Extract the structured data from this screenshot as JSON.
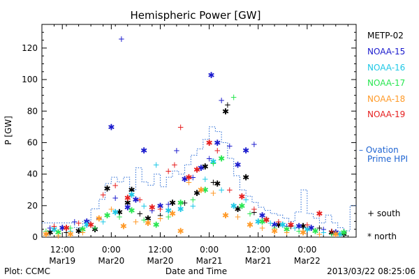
{
  "chart_data": {
    "type": "scatter",
    "title": "Hemispheric Power [GW]",
    "xlabel": "Date and Time",
    "ylabel": "P [GW]",
    "ylim": [
      0,
      135
    ],
    "xlim": [
      "2013-03-19T07:00",
      "2013-03-22T12:00"
    ],
    "yticks": [
      0,
      20,
      40,
      60,
      80,
      100,
      120
    ],
    "xticks": [
      {
        "top": "12:00",
        "bottom": "Mar19"
      },
      {
        "top": "0:00",
        "bottom": "Mar20"
      },
      {
        "top": "12:00",
        "bottom": "Mar20"
      },
      {
        "top": "0:00",
        "bottom": "Mar21"
      },
      {
        "top": "12:00",
        "bottom": "Mar21"
      },
      {
        "top": "0:00",
        "bottom": "Mar22"
      }
    ],
    "legend_position": "right",
    "legend_colors": {
      "METP-02": "#000000",
      "NOAA-15": "#1a1acd",
      "NOAA-16": "#1ec8e6",
      "NOAA-17": "#28e650",
      "NOAA-18": "#ff9a28",
      "NOAA-19": "#e61e1e",
      "Ovation Prime HPI": "#1e64d2"
    },
    "marker_key": {
      "plus": "south",
      "asterisk": "north"
    },
    "series": [
      {
        "name": "METP-02",
        "color": "#000000",
        "points": [
          [
            "2013-03-19T09:00",
            3,
            "n"
          ],
          [
            "2013-03-19T13:00",
            3,
            "s"
          ],
          [
            "2013-03-19T16:00",
            4,
            "n"
          ],
          [
            "2013-03-19T20:00",
            5,
            "n"
          ],
          [
            "2013-03-19T23:00",
            31,
            "n"
          ],
          [
            "2013-03-20T02:00",
            16,
            "n"
          ],
          [
            "2013-03-20T04:00",
            22,
            "n"
          ],
          [
            "2013-03-20T05:00",
            30,
            "n"
          ],
          [
            "2013-03-20T07:00",
            15,
            "s"
          ],
          [
            "2013-03-20T09:00",
            12,
            "n"
          ],
          [
            "2013-03-20T12:00",
            14,
            "s"
          ],
          [
            "2013-03-20T15:00",
            22,
            "n"
          ],
          [
            "2013-03-20T18:00",
            22,
            "s"
          ],
          [
            "2013-03-20T21:00",
            28,
            "n"
          ],
          [
            "2013-03-20T23:00",
            45,
            "n"
          ],
          [
            "2013-03-21T01:00",
            35,
            "s"
          ],
          [
            "2013-03-21T02:00",
            34,
            "n"
          ],
          [
            "2013-03-21T04:00",
            80,
            "n"
          ],
          [
            "2013-03-21T04:30",
            84,
            "s"
          ],
          [
            "2013-03-21T07:00",
            18,
            "n"
          ],
          [
            "2013-03-21T09:00",
            38,
            "n"
          ],
          [
            "2013-03-21T11:00",
            16,
            "s"
          ],
          [
            "2013-03-21T14:00",
            11,
            "n"
          ],
          [
            "2013-03-21T17:00",
            8,
            "n"
          ],
          [
            "2013-03-21T20:00",
            7,
            "s"
          ],
          [
            "2013-03-21T23:00",
            7,
            "n"
          ],
          [
            "2013-03-22T03:00",
            6,
            "s"
          ],
          [
            "2013-03-22T06:00",
            3,
            "n"
          ],
          [
            "2013-03-22T09:00",
            2,
            "n"
          ]
        ]
      },
      {
        "name": "NOAA-15",
        "color": "#1a1acd",
        "points": [
          [
            "2013-03-19T09:00",
            6,
            "s"
          ],
          [
            "2013-03-19T12:00",
            6,
            "n"
          ],
          [
            "2013-03-19T15:00",
            10,
            "s"
          ],
          [
            "2013-03-19T18:00",
            10,
            "n"
          ],
          [
            "2013-03-19T21:00",
            12,
            "s"
          ],
          [
            "2013-03-20T00:00",
            70,
            "n"
          ],
          [
            "2013-03-20T01:00",
            25,
            "s"
          ],
          [
            "2013-03-20T02:30",
            126,
            "s"
          ],
          [
            "2013-03-20T04:00",
            19,
            "n"
          ],
          [
            "2013-03-20T06:00",
            24,
            "n"
          ],
          [
            "2013-03-20T08:00",
            55,
            "n"
          ],
          [
            "2013-03-20T10:00",
            17,
            "s"
          ],
          [
            "2013-03-20T12:00",
            20,
            "n"
          ],
          [
            "2013-03-20T14:00",
            21,
            "s"
          ],
          [
            "2013-03-20T16:00",
            55,
            "s"
          ],
          [
            "2013-03-20T18:00",
            37,
            "n"
          ],
          [
            "2013-03-20T20:00",
            38,
            "s"
          ],
          [
            "2013-03-20T22:00",
            44,
            "n"
          ],
          [
            "2013-03-21T00:00",
            50,
            "s"
          ],
          [
            "2013-03-21T00:30",
            103,
            "n"
          ],
          [
            "2013-03-21T02:00",
            60,
            "n"
          ],
          [
            "2013-03-21T03:00",
            87,
            "s"
          ],
          [
            "2013-03-21T05:00",
            58,
            "s"
          ],
          [
            "2013-03-21T07:00",
            46,
            "n"
          ],
          [
            "2013-03-21T09:00",
            55,
            "n"
          ],
          [
            "2013-03-21T11:00",
            59,
            "s"
          ],
          [
            "2013-03-21T13:00",
            14,
            "n"
          ],
          [
            "2013-03-21T16:00",
            8,
            "n"
          ],
          [
            "2013-03-21T19:00",
            7,
            "s"
          ],
          [
            "2013-03-21T22:00",
            7,
            "n"
          ],
          [
            "2013-03-22T01:00",
            6,
            "n"
          ],
          [
            "2013-03-22T04:00",
            5,
            "s"
          ],
          [
            "2013-03-22T07:00",
            3,
            "n"
          ]
        ]
      },
      {
        "name": "NOAA-16",
        "color": "#1ec8e6",
        "points": [
          [
            "2013-03-19T10:00",
            5,
            "n"
          ],
          [
            "2013-03-19T14:00",
            4,
            "s"
          ],
          [
            "2013-03-19T18:00",
            8,
            "n"
          ],
          [
            "2013-03-19T22:00",
            10,
            "s"
          ],
          [
            "2013-03-20T01:00",
            16,
            "n"
          ],
          [
            "2013-03-20T05:00",
            27,
            "n"
          ],
          [
            "2013-03-20T08:00",
            20,
            "s"
          ],
          [
            "2013-03-20T11:00",
            46,
            "s"
          ],
          [
            "2013-03-20T14:00",
            17,
            "n"
          ],
          [
            "2013-03-20T17:00",
            18,
            "n"
          ],
          [
            "2013-03-20T20:00",
            20,
            "s"
          ],
          [
            "2013-03-20T23:00",
            37,
            "s"
          ],
          [
            "2013-03-21T01:00",
            48,
            "n"
          ],
          [
            "2013-03-21T03:00",
            30,
            "s"
          ],
          [
            "2013-03-21T06:00",
            20,
            "n"
          ],
          [
            "2013-03-21T09:00",
            24,
            "s"
          ],
          [
            "2013-03-21T12:00",
            10,
            "n"
          ],
          [
            "2013-03-21T15:00",
            9,
            "s"
          ],
          [
            "2013-03-21T18:00",
            8,
            "n"
          ],
          [
            "2013-03-21T21:00",
            6,
            "s"
          ],
          [
            "2013-03-22T00:00",
            5,
            "n"
          ],
          [
            "2013-03-22T04:00",
            3,
            "s"
          ],
          [
            "2013-03-22T08:00",
            2,
            "n"
          ]
        ]
      },
      {
        "name": "NOAA-17",
        "color": "#28e650",
        "points": [
          [
            "2013-03-19T08:00",
            4,
            "s"
          ],
          [
            "2013-03-19T11:00",
            3,
            "n"
          ],
          [
            "2013-03-19T14:00",
            6,
            "s"
          ],
          [
            "2013-03-19T17:00",
            5,
            "n"
          ],
          [
            "2013-03-19T20:00",
            6,
            "s"
          ],
          [
            "2013-03-19T23:00",
            14,
            "n"
          ],
          [
            "2013-03-20T02:00",
            13,
            "s"
          ],
          [
            "2013-03-20T05:00",
            17,
            "n"
          ],
          [
            "2013-03-20T08:00",
            11,
            "s"
          ],
          [
            "2013-03-20T11:00",
            8,
            "n"
          ],
          [
            "2013-03-20T14:00",
            13,
            "s"
          ],
          [
            "2013-03-20T17:00",
            22,
            "n"
          ],
          [
            "2013-03-20T20:00",
            24,
            "s"
          ],
          [
            "2013-03-20T23:00",
            30,
            "n"
          ],
          [
            "2013-03-21T01:00",
            47,
            "s"
          ],
          [
            "2013-03-21T03:00",
            50,
            "n"
          ],
          [
            "2013-03-21T06:00",
            89,
            "s"
          ],
          [
            "2013-03-21T08:00",
            20,
            "n"
          ],
          [
            "2013-03-21T10:00",
            15,
            "s"
          ],
          [
            "2013-03-21T13:00",
            10,
            "n"
          ],
          [
            "2013-03-21T16:00",
            6,
            "s"
          ],
          [
            "2013-03-21T19:00",
            5,
            "n"
          ],
          [
            "2013-03-21T22:00",
            4,
            "s"
          ],
          [
            "2013-03-22T02:00",
            4,
            "n"
          ],
          [
            "2013-03-22T06:00",
            2,
            "s"
          ],
          [
            "2013-03-22T09:00",
            3,
            "n"
          ]
        ]
      },
      {
        "name": "NOAA-18",
        "color": "#ff9a28",
        "points": [
          [
            "2013-03-19T08:00",
            2,
            "n"
          ],
          [
            "2013-03-19T11:00",
            1,
            "s"
          ],
          [
            "2013-03-19T14:00",
            2,
            "n"
          ],
          [
            "2013-03-19T17:00",
            3,
            "s"
          ],
          [
            "2013-03-19T21:00",
            12,
            "n"
          ],
          [
            "2013-03-20T00:00",
            18,
            "s"
          ],
          [
            "2013-03-20T03:00",
            7,
            "n"
          ],
          [
            "2013-03-20T06:00",
            10,
            "s"
          ],
          [
            "2013-03-20T09:00",
            9,
            "n"
          ],
          [
            "2013-03-20T12:00",
            12,
            "s"
          ],
          [
            "2013-03-20T15:00",
            15,
            "n"
          ],
          [
            "2013-03-20T17:00",
            4,
            "n"
          ],
          [
            "2013-03-20T19:00",
            35,
            "s"
          ],
          [
            "2013-03-20T22:00",
            30,
            "n"
          ],
          [
            "2013-03-21T01:00",
            28,
            "s"
          ],
          [
            "2013-03-21T04:00",
            14,
            "n"
          ],
          [
            "2013-03-21T07:00",
            13,
            "s"
          ],
          [
            "2013-03-21T10:00",
            8,
            "n"
          ],
          [
            "2013-03-21T13:00",
            6,
            "s"
          ],
          [
            "2013-03-21T16:00",
            4,
            "n"
          ],
          [
            "2013-03-21T19:00",
            3,
            "s"
          ],
          [
            "2013-03-21T23:00",
            3,
            "n"
          ],
          [
            "2013-03-22T03:00",
            2,
            "s"
          ],
          [
            "2013-03-22T07:00",
            2,
            "n"
          ]
        ]
      },
      {
        "name": "NOAA-19",
        "color": "#e61e1e",
        "points": [
          [
            "2013-03-19T10:00",
            7,
            "s"
          ],
          [
            "2013-03-19T13:00",
            6,
            "n"
          ],
          [
            "2013-03-19T16:00",
            9,
            "s"
          ],
          [
            "2013-03-19T19:00",
            8,
            "n"
          ],
          [
            "2013-03-19T22:00",
            27,
            "s"
          ],
          [
            "2013-03-20T01:00",
            33,
            "s"
          ],
          [
            "2013-03-20T04:00",
            25,
            "n"
          ],
          [
            "2013-03-20T07:00",
            24,
            "s"
          ],
          [
            "2013-03-20T10:00",
            19,
            "n"
          ],
          [
            "2013-03-20T12:00",
            18,
            "s"
          ],
          [
            "2013-03-20T14:00",
            42,
            "s"
          ],
          [
            "2013-03-20T15:30",
            46,
            "s"
          ],
          [
            "2013-03-20T17:00",
            70,
            "s"
          ],
          [
            "2013-03-20T19:00",
            38,
            "n"
          ],
          [
            "2013-03-20T21:00",
            43,
            "n"
          ],
          [
            "2013-03-21T00:00",
            60,
            "n"
          ],
          [
            "2013-03-21T02:00",
            55,
            "s"
          ],
          [
            "2013-03-21T05:00",
            30,
            "s"
          ],
          [
            "2013-03-21T08:00",
            26,
            "n"
          ],
          [
            "2013-03-21T11:00",
            18,
            "s"
          ],
          [
            "2013-03-21T14:00",
            11,
            "n"
          ],
          [
            "2013-03-21T17:00",
            10,
            "s"
          ],
          [
            "2013-03-21T20:00",
            8,
            "n"
          ],
          [
            "2013-03-22T00:00",
            8,
            "s"
          ],
          [
            "2013-03-22T03:00",
            15,
            "n"
          ],
          [
            "2013-03-22T06:00",
            4,
            "s"
          ]
        ]
      }
    ],
    "hpi_steps": [
      [
        "2013-03-19T07:00",
        9
      ],
      [
        "2013-03-19T15:00",
        6
      ],
      [
        "2013-03-19T17:00",
        10
      ],
      [
        "2013-03-19T19:00",
        18
      ],
      [
        "2013-03-19T21:00",
        24
      ],
      [
        "2013-03-19T22:30",
        34
      ],
      [
        "2013-03-20T00:00",
        38
      ],
      [
        "2013-03-20T01:30",
        35
      ],
      [
        "2013-03-20T03:00",
        38
      ],
      [
        "2013-03-20T04:30",
        30
      ],
      [
        "2013-03-20T06:00",
        44
      ],
      [
        "2013-03-20T07:30",
        35
      ],
      [
        "2013-03-20T09:00",
        33
      ],
      [
        "2013-03-20T10:30",
        40
      ],
      [
        "2013-03-20T12:00",
        32
      ],
      [
        "2013-03-20T13:30",
        38
      ],
      [
        "2013-03-20T15:00",
        42
      ],
      [
        "2013-03-20T16:30",
        40
      ],
      [
        "2013-03-20T18:00",
        46
      ],
      [
        "2013-03-20T19:30",
        52
      ],
      [
        "2013-03-20T21:00",
        56
      ],
      [
        "2013-03-20T22:30",
        62
      ],
      [
        "2013-03-21T00:00",
        70
      ],
      [
        "2013-03-21T01:30",
        67
      ],
      [
        "2013-03-21T03:00",
        60
      ],
      [
        "2013-03-21T04:30",
        50
      ],
      [
        "2013-03-21T06:00",
        39
      ],
      [
        "2013-03-21T07:30",
        30
      ],
      [
        "2013-03-21T09:00",
        26
      ],
      [
        "2013-03-21T10:30",
        22
      ],
      [
        "2013-03-21T12:00",
        19
      ],
      [
        "2013-03-21T13:30",
        17
      ],
      [
        "2013-03-21T15:00",
        15
      ],
      [
        "2013-03-21T16:30",
        14
      ],
      [
        "2013-03-21T18:00",
        12
      ],
      [
        "2013-03-21T19:30",
        10
      ],
      [
        "2013-03-21T21:00",
        16
      ],
      [
        "2013-03-21T22:30",
        30
      ],
      [
        "2013-03-22T00:00",
        15
      ],
      [
        "2013-03-22T01:30",
        12
      ],
      [
        "2013-03-22T03:00",
        9
      ],
      [
        "2013-03-22T04:30",
        14
      ],
      [
        "2013-03-22T06:00",
        9
      ],
      [
        "2013-03-22T07:30",
        6
      ],
      [
        "2013-03-22T09:00",
        4
      ],
      [
        "2013-03-22T10:30",
        20
      ],
      [
        "2013-03-22T12:00",
        20
      ]
    ]
  },
  "legend": {
    "sats": [
      "METP-02",
      "NOAA-15",
      "NOAA-16",
      "NOAA-17",
      "NOAA-18",
      "NOAA-19"
    ],
    "hpi_line1": "– Ovation",
    "hpi_line2": "Prime HPI",
    "south_label": "+ south",
    "north_label": "* north"
  },
  "footer": {
    "left": "Plot: CCMC",
    "right": "2013/03/22 08:25:06"
  }
}
